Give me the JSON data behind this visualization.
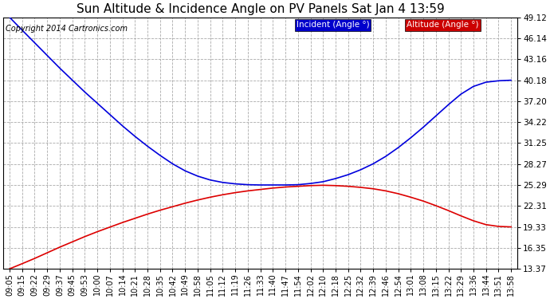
{
  "title": "Sun Altitude & Incidence Angle on PV Panels Sat Jan 4 13:59",
  "copyright": "Copyright 2014 Cartronics.com",
  "legend_incident": "Incident (Angle °)",
  "legend_altitude": "Altitude (Angle °)",
  "ylim_min": 13.37,
  "ylim_max": 49.12,
  "yticks": [
    13.37,
    16.35,
    19.33,
    22.31,
    25.29,
    28.27,
    31.25,
    34.22,
    37.2,
    40.18,
    43.16,
    46.14,
    49.12
  ],
  "xtick_labels": [
    "09:05",
    "09:15",
    "09:22",
    "09:29",
    "09:37",
    "09:45",
    "09:53",
    "10:00",
    "10:07",
    "10:14",
    "10:21",
    "10:28",
    "10:35",
    "10:42",
    "10:49",
    "10:58",
    "11:05",
    "11:12",
    "11:19",
    "11:26",
    "11:33",
    "11:40",
    "11:47",
    "11:54",
    "12:02",
    "12:10",
    "12:18",
    "12:25",
    "12:32",
    "12:39",
    "12:46",
    "12:54",
    "13:01",
    "13:08",
    "13:15",
    "13:22",
    "13:29",
    "13:36",
    "13:44",
    "13:51",
    "13:58"
  ],
  "outer_bg_color": "#ffffff",
  "plot_bg_color": "#ffffff",
  "grid_color": "#aaaaaa",
  "line_incident_color": "#0000dd",
  "line_altitude_color": "#dd0000",
  "legend_incident_bg": "#0000cc",
  "legend_altitude_bg": "#cc0000",
  "title_fontsize": 11,
  "copyright_fontsize": 7,
  "tick_fontsize": 7,
  "ytick_fontsize": 7.5,
  "incident_data": [
    49.12,
    47.3,
    45.5,
    43.7,
    41.9,
    40.2,
    38.5,
    36.9,
    35.3,
    33.7,
    32.2,
    30.8,
    29.5,
    28.3,
    27.3,
    26.55,
    26.0,
    25.65,
    25.45,
    25.33,
    25.29,
    25.29,
    25.29,
    25.33,
    25.5,
    25.75,
    26.2,
    26.75,
    27.45,
    28.3,
    29.35,
    30.6,
    32.0,
    33.5,
    35.1,
    36.7,
    38.2,
    39.3,
    39.9,
    40.1,
    40.18
  ],
  "altitude_data": [
    13.37,
    14.1,
    14.85,
    15.65,
    16.45,
    17.2,
    17.95,
    18.65,
    19.3,
    19.95,
    20.55,
    21.15,
    21.7,
    22.2,
    22.7,
    23.15,
    23.55,
    23.9,
    24.2,
    24.45,
    24.65,
    24.85,
    25.0,
    25.1,
    25.2,
    25.25,
    25.2,
    25.1,
    24.95,
    24.75,
    24.45,
    24.05,
    23.55,
    23.0,
    22.35,
    21.65,
    20.9,
    20.2,
    19.65,
    19.4,
    19.33
  ]
}
